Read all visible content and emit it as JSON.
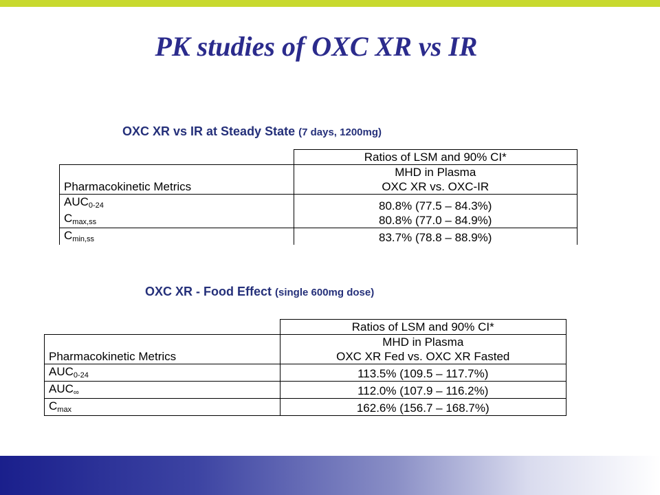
{
  "slide": {
    "title": "PK studies of OXC XR vs IR",
    "accent_color": "#c8d92e",
    "title_color": "#2b2b8c"
  },
  "section1": {
    "heading_main": "OXC XR vs IR  at Steady State",
    "heading_small": "(7 days, 1200mg)",
    "header_ratios": "Ratios of LSM and 90% CI*",
    "header_metrics": "Pharmacokinetic Metrics",
    "header_plasma_line1": "MHD in Plasma",
    "header_plasma_line2": "OXC XR vs. OXC-IR",
    "rows": [
      {
        "metric": "AUC",
        "sub": "0-24",
        "value": "80.8% (77.5 – 84.3%)"
      },
      {
        "metric": "C",
        "sub": "max,ss",
        "value": "80.8% (77.0 – 84.9%)"
      },
      {
        "metric": "C",
        "sub": "min,ss",
        "value": "83.7% (78.8 – 88.9%)"
      }
    ]
  },
  "section2": {
    "heading_main": "OXC XR - Food Effect",
    "heading_small": "(single 600mg dose)",
    "header_ratios": "Ratios of LSM and 90% CI*",
    "header_metrics": "Pharmacokinetic Metrics",
    "header_plasma_line1": "MHD in Plasma",
    "header_plasma_line2": "OXC XR Fed vs. OXC XR Fasted",
    "rows": [
      {
        "metric": "AUC",
        "sub": "0-24",
        "value": "113.5% (109.5 – 117.7%)"
      },
      {
        "metric": "AUC",
        "sub": "∞",
        "value": "112.0% (107.9 – 116.2%)"
      },
      {
        "metric": "C",
        "sub": "max",
        "value": "162.6% (156.7 – 168.7%)"
      }
    ]
  }
}
